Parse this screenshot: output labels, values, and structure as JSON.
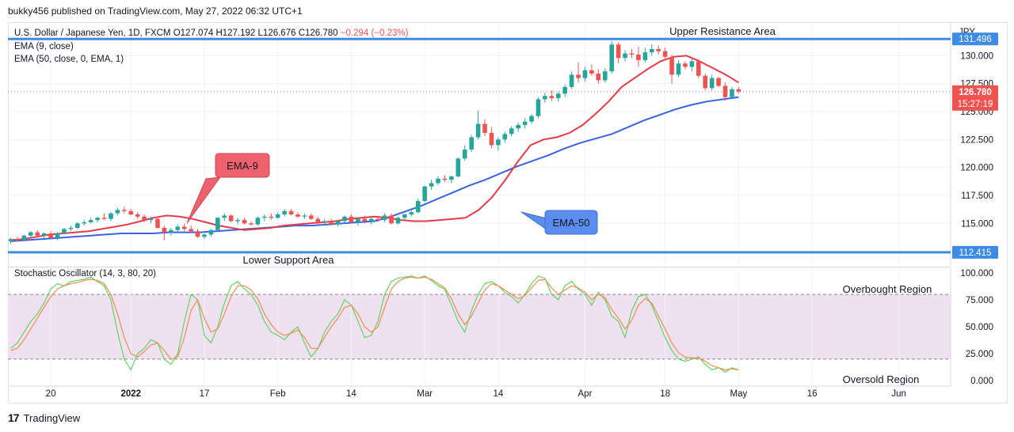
{
  "header": {
    "publisher": "bukky456 published on TradingView.com, May 27, 2022 06:32 UTC+1"
  },
  "legend": {
    "symbol": "U.S. Dollar / Japanese Yen, 1D, FXCM",
    "open": "O127.074",
    "high": "H127.192",
    "low": "L126.676",
    "close": "C126.780",
    "change": "−0.294 (−0.23%)",
    "ema9": "EMA (9, close)",
    "ema50": "EMA (50, close, 0, EMA, 1)",
    "stoch": "Stochastic Oscillator (14, 3, 80, 20)"
  },
  "footer": {
    "brand": "TradingView"
  },
  "colors": {
    "up": "#26a69a",
    "down": "#ef5350",
    "ema9": "#e53a4a",
    "ema50": "#3a63e0",
    "level": "#3c8ce6",
    "stochK": "#5ed65e",
    "stochD": "#f28c52",
    "bandFill": "#f0e1f2",
    "callout_red": "#f0616e",
    "callout_blue": "#5b8def"
  },
  "chart_data": [
    {
      "type": "candlestick",
      "currency": "JPY",
      "y_ticks": [
        "130.000",
        "127.500",
        "125.000",
        "122.500",
        "120.000",
        "117.500",
        "115.000"
      ],
      "ylim": [
        111.2,
        133.0
      ],
      "x_ticks": [
        "20",
        "2022",
        "17",
        "Feb",
        "14",
        "Mar",
        "14",
        "Apr",
        "18",
        "May",
        "16",
        "Jun"
      ],
      "x_tick_index": [
        6,
        18,
        29,
        40,
        51,
        62,
        73,
        86,
        98,
        109,
        120,
        133
      ],
      "last_price": {
        "value": 126.78,
        "label": "126.780",
        "countdown": "15:27:19"
      },
      "levels": [
        {
          "name": "Upper Resistance Area",
          "value": 131.496,
          "label": "131.496"
        },
        {
          "name": "Lower Support Area",
          "value": 112.415,
          "label": "112.415"
        }
      ],
      "callouts": [
        {
          "text": "EMA-9"
        },
        {
          "text": "EMA-50"
        }
      ],
      "candles": [
        [
          113.4,
          113.7,
          113.2,
          113.6
        ],
        [
          113.6,
          113.8,
          113.4,
          113.5
        ],
        [
          113.5,
          114.0,
          113.4,
          113.9
        ],
        [
          113.9,
          114.3,
          113.7,
          114.2
        ],
        [
          114.2,
          114.4,
          113.8,
          113.9
        ],
        [
          113.9,
          114.2,
          113.6,
          114.1
        ],
        [
          114.1,
          114.3,
          113.6,
          113.7
        ],
        [
          113.7,
          114.2,
          113.5,
          114.1
        ],
        [
          114.1,
          114.6,
          114.0,
          114.5
        ],
        [
          114.5,
          114.8,
          114.3,
          114.6
        ],
        [
          114.6,
          115.1,
          114.5,
          115.0
        ],
        [
          115.0,
          115.3,
          114.8,
          115.1
        ],
        [
          115.1,
          115.5,
          115.0,
          115.3
        ],
        [
          115.3,
          115.6,
          115.1,
          115.5
        ],
        [
          115.5,
          115.9,
          115.3,
          115.4
        ],
        [
          115.4,
          116.0,
          115.2,
          115.9
        ],
        [
          115.9,
          116.4,
          115.7,
          116.2
        ],
        [
          116.2,
          116.5,
          115.9,
          116.1
        ],
        [
          116.1,
          116.3,
          115.7,
          115.8
        ],
        [
          115.8,
          116.0,
          115.4,
          115.6
        ],
        [
          115.6,
          115.8,
          115.1,
          115.3
        ],
        [
          115.3,
          115.6,
          115.0,
          115.4
        ],
        [
          115.4,
          115.5,
          114.5,
          114.6
        ],
        [
          114.6,
          114.8,
          113.5,
          114.2
        ],
        [
          114.2,
          114.6,
          113.9,
          114.4
        ],
        [
          114.4,
          114.9,
          114.2,
          114.7
        ],
        [
          114.7,
          115.0,
          114.3,
          114.5
        ],
        [
          114.5,
          114.8,
          114.2,
          114.3
        ],
        [
          114.3,
          114.5,
          113.7,
          113.8
        ],
        [
          113.8,
          114.1,
          113.6,
          114.0
        ],
        [
          114.0,
          114.5,
          113.8,
          114.4
        ],
        [
          114.4,
          115.6,
          114.3,
          115.5
        ],
        [
          115.5,
          115.9,
          115.2,
          115.7
        ],
        [
          115.7,
          115.8,
          115.1,
          115.2
        ],
        [
          115.2,
          115.5,
          114.9,
          115.3
        ],
        [
          115.3,
          115.5,
          114.9,
          115.0
        ],
        [
          115.0,
          115.2,
          114.8,
          114.9
        ],
        [
          114.9,
          115.6,
          114.8,
          115.5
        ],
        [
          115.5,
          115.8,
          115.2,
          115.6
        ],
        [
          115.6,
          115.9,
          115.3,
          115.5
        ],
        [
          115.5,
          116.0,
          115.4,
          115.8
        ],
        [
          115.8,
          116.3,
          115.6,
          116.1
        ],
        [
          116.1,
          116.3,
          115.7,
          115.8
        ],
        [
          115.8,
          116.0,
          115.5,
          115.6
        ],
        [
          115.6,
          115.9,
          115.4,
          115.7
        ],
        [
          115.7,
          115.9,
          115.3,
          115.4
        ],
        [
          115.4,
          115.6,
          114.9,
          115.1
        ],
        [
          115.1,
          115.4,
          114.9,
          115.2
        ],
        [
          115.2,
          115.4,
          114.8,
          114.9
        ],
        [
          114.9,
          115.3,
          114.7,
          115.2
        ],
        [
          115.2,
          115.7,
          115.0,
          115.6
        ],
        [
          115.6,
          115.8,
          115.0,
          115.1
        ],
        [
          115.1,
          115.5,
          114.8,
          115.4
        ],
        [
          115.4,
          115.7,
          115.0,
          115.2
        ],
        [
          115.2,
          115.6,
          114.9,
          115.4
        ],
        [
          115.4,
          115.6,
          115.1,
          115.3
        ],
        [
          115.3,
          115.9,
          115.1,
          115.7
        ],
        [
          115.7,
          115.9,
          114.9,
          115.0
        ],
        [
          115.0,
          115.6,
          114.9,
          115.5
        ],
        [
          115.5,
          115.9,
          115.3,
          115.8
        ],
        [
          115.8,
          116.3,
          115.6,
          116.0
        ],
        [
          116.0,
          117.2,
          115.9,
          117.0
        ],
        [
          117.0,
          118.4,
          116.9,
          118.3
        ],
        [
          118.3,
          118.9,
          118.0,
          118.6
        ],
        [
          118.6,
          119.2,
          118.4,
          119.0
        ],
        [
          119.0,
          119.3,
          118.7,
          118.9
        ],
        [
          118.9,
          119.3,
          118.6,
          119.2
        ],
        [
          119.2,
          120.9,
          119.1,
          120.8
        ],
        [
          120.8,
          122.0,
          120.6,
          121.6
        ],
        [
          121.6,
          122.9,
          121.4,
          122.7
        ],
        [
          122.7,
          125.1,
          122.5,
          123.9
        ],
        [
          123.9,
          124.3,
          122.8,
          123.1
        ],
        [
          123.1,
          123.6,
          121.7,
          122.0
        ],
        [
          122.0,
          122.7,
          121.5,
          122.5
        ],
        [
          122.5,
          123.2,
          122.2,
          123.0
        ],
        [
          123.0,
          123.7,
          122.8,
          123.5
        ],
        [
          123.5,
          124.0,
          123.2,
          123.8
        ],
        [
          123.8,
          124.4,
          123.5,
          124.1
        ],
        [
          124.1,
          124.8,
          123.9,
          124.6
        ],
        [
          124.6,
          126.3,
          124.4,
          126.1
        ],
        [
          126.1,
          126.7,
          125.8,
          126.4
        ],
        [
          126.4,
          126.9,
          125.9,
          126.2
        ],
        [
          126.2,
          126.8,
          125.9,
          126.6
        ],
        [
          126.6,
          127.4,
          126.3,
          127.2
        ],
        [
          127.2,
          128.6,
          127.0,
          128.3
        ],
        [
          128.3,
          129.4,
          127.6,
          128.0
        ],
        [
          128.0,
          129.0,
          127.7,
          128.7
        ],
        [
          128.7,
          129.2,
          128.2,
          128.4
        ],
        [
          128.4,
          128.8,
          127.5,
          127.8
        ],
        [
          127.8,
          128.9,
          127.6,
          128.6
        ],
        [
          128.6,
          131.3,
          128.4,
          131.0
        ],
        [
          131.0,
          131.2,
          129.3,
          129.8
        ],
        [
          129.8,
          130.5,
          129.5,
          130.2
        ],
        [
          130.2,
          130.6,
          129.8,
          130.1
        ],
        [
          130.1,
          130.8,
          129.0,
          129.6
        ],
        [
          129.6,
          130.7,
          129.4,
          130.3
        ],
        [
          130.3,
          131.0,
          130.0,
          130.6
        ],
        [
          130.6,
          130.9,
          130.1,
          130.4
        ],
        [
          130.4,
          130.7,
          129.6,
          129.9
        ],
        [
          129.9,
          130.1,
          127.5,
          128.3
        ],
        [
          128.3,
          129.6,
          128.1,
          129.3
        ],
        [
          129.3,
          129.5,
          128.8,
          129.0
        ],
        [
          129.0,
          129.7,
          128.6,
          129.5
        ],
        [
          129.5,
          129.7,
          128.0,
          128.2
        ],
        [
          128.2,
          128.4,
          126.9,
          127.1
        ],
        [
          127.1,
          128.3,
          126.9,
          128.0
        ],
        [
          128.0,
          128.1,
          127.2,
          127.3
        ],
        [
          127.3,
          127.6,
          126.0,
          126.3
        ],
        [
          126.3,
          127.2,
          126.2,
          127.0
        ],
        [
          127.0,
          127.2,
          126.6,
          126.8
        ]
      ],
      "ema9": [
        113.5,
        113.6,
        113.8,
        114.0,
        114.1,
        114.2,
        114.3,
        114.5,
        114.7,
        114.9,
        115.2,
        115.5,
        115.7,
        115.6,
        115.4,
        115.1,
        114.8,
        114.6,
        114.4,
        114.5,
        114.6,
        114.8,
        114.9,
        115.0,
        115.1,
        115.2,
        115.4,
        115.5,
        115.6,
        115.5,
        115.3,
        115.2,
        115.2,
        115.3,
        115.4,
        115.5,
        116.2,
        117.3,
        118.8,
        120.5,
        122.0,
        122.5,
        122.7,
        123.1,
        123.8,
        124.8,
        125.9,
        127.2,
        128.0,
        128.8,
        129.5,
        129.9,
        130.0,
        129.5,
        128.9,
        128.3,
        127.6
      ],
      "ema50": [
        113.4,
        113.5,
        113.6,
        113.7,
        113.8,
        113.9,
        114.0,
        114.1,
        114.1,
        114.1,
        114.2,
        114.2,
        114.2,
        114.3,
        114.4,
        114.5,
        114.6,
        114.7,
        114.8,
        114.8,
        114.9,
        115.0,
        115.1,
        115.2,
        115.6,
        116.1,
        116.6,
        117.2,
        117.8,
        118.4,
        118.9,
        119.5,
        120.1,
        120.6,
        121.1,
        121.7,
        122.2,
        122.6,
        123.0,
        123.6,
        124.2,
        124.7,
        125.2,
        125.6,
        125.9,
        126.1,
        126.3
      ]
    },
    {
      "type": "line",
      "title": "Stochastic Oscillator (14, 3, 80, 20)",
      "y_ticks": [
        "100.000",
        "75.000",
        "50.000",
        "25.000",
        "0.000"
      ],
      "ylim": [
        -5,
        105
      ],
      "bands": [
        80,
        20
      ],
      "annotations": [
        "Overbought Region",
        "Oversold Region"
      ],
      "series": [
        {
          "values": [
            30,
            35,
            45,
            55,
            62,
            72,
            85,
            90,
            88,
            92,
            93,
            94,
            96,
            92,
            88,
            75,
            45,
            20,
            10,
            25,
            30,
            38,
            35,
            20,
            15,
            25,
            55,
            80,
            75,
            42,
            35,
            50,
            72,
            88,
            92,
            85,
            80,
            70,
            55,
            45,
            42,
            38,
            45,
            50,
            35,
            22,
            30,
            45,
            55,
            62,
            75,
            70,
            55,
            40,
            42,
            55,
            80,
            92,
            95,
            96,
            97,
            95,
            97,
            93,
            88,
            85,
            70,
            55,
            45,
            65,
            80,
            90,
            92,
            88,
            82,
            78,
            72,
            80,
            90,
            97,
            95,
            80,
            75,
            88,
            92,
            85,
            80,
            70,
            82,
            75,
            60,
            55,
            40,
            65,
            78,
            80,
            70,
            55,
            40,
            28,
            20,
            18,
            20,
            22,
            15,
            10,
            12,
            8,
            12,
            10
          ]
        },
        {
          "values": [
            28,
            30,
            38,
            48,
            58,
            68,
            78,
            85,
            88,
            90,
            91,
            93,
            94,
            93,
            90,
            80,
            62,
            40,
            25,
            22,
            27,
            33,
            35,
            28,
            20,
            22,
            40,
            65,
            75,
            58,
            45,
            48,
            62,
            78,
            88,
            88,
            84,
            76,
            62,
            52,
            45,
            42,
            44,
            47,
            40,
            30,
            30,
            40,
            50,
            58,
            68,
            70,
            62,
            50,
            45,
            50,
            68,
            85,
            92,
            95,
            96,
            95,
            96,
            94,
            90,
            86,
            76,
            62,
            52,
            60,
            72,
            84,
            90,
            88,
            84,
            80,
            76,
            79,
            86,
            93,
            94,
            86,
            80,
            84,
            88,
            86,
            82,
            75,
            80,
            77,
            66,
            58,
            48,
            56,
            70,
            76,
            72,
            60,
            48,
            35,
            26,
            22,
            21,
            21,
            18,
            14,
            12,
            10,
            11,
            10
          ]
        }
      ]
    }
  ]
}
